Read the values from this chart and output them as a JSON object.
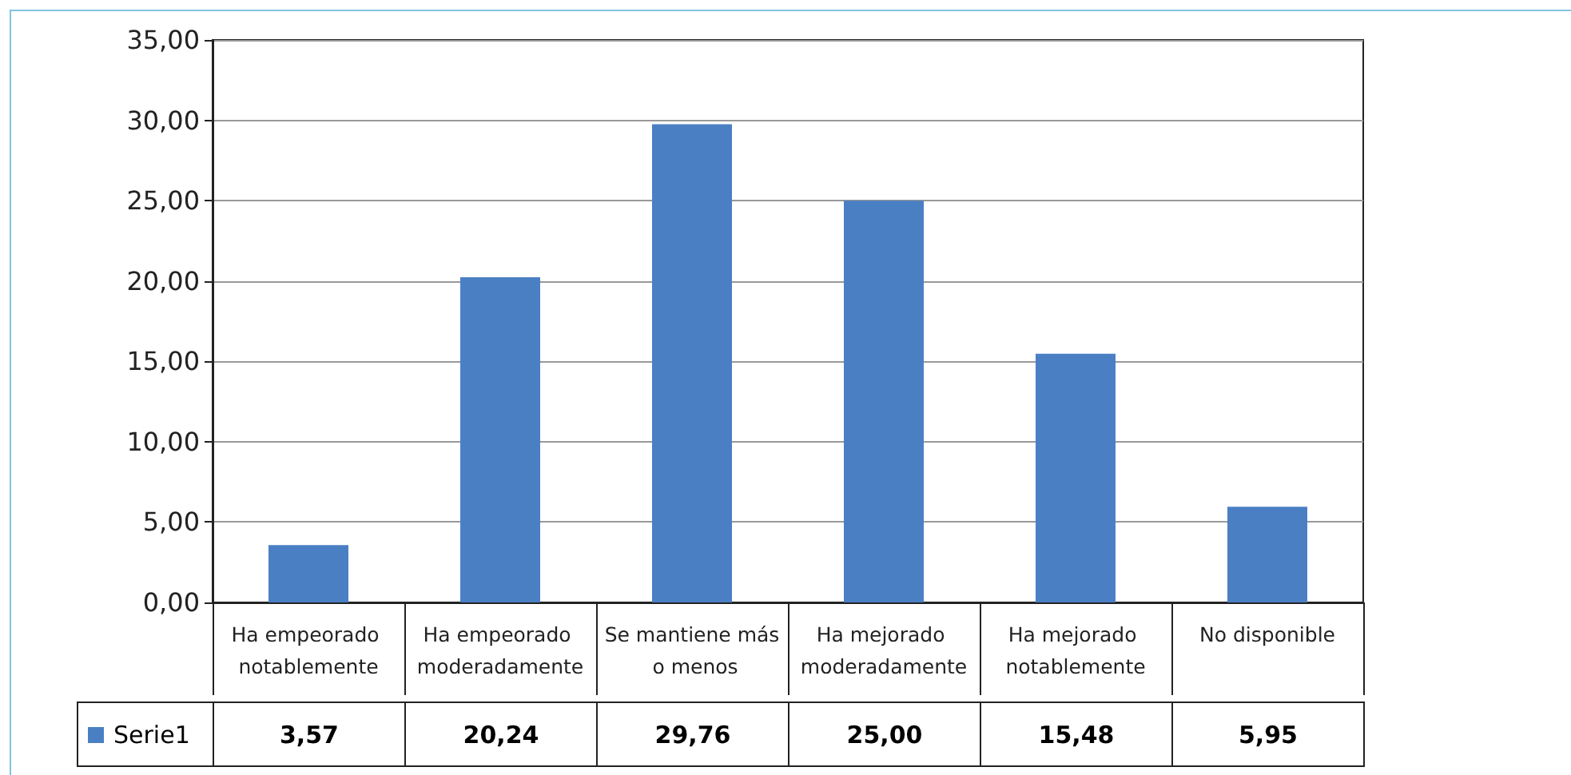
{
  "chart_data": {
    "type": "bar",
    "categories": [
      "Ha empeorado notablemente",
      "Ha empeorado moderadamente",
      "Se mantiene más o menos",
      "Ha mejorado moderadamente",
      "Ha mejorado notablemente",
      "No disponible"
    ],
    "series": [
      {
        "name": "Serie1",
        "color": "#4a7fc4",
        "values": [
          3.57,
          20.24,
          29.76,
          25.0,
          15.48,
          5.95
        ],
        "value_labels": [
          "3,57",
          "20,24",
          "29,76",
          "25,00",
          "15,48",
          "5,95"
        ]
      }
    ],
    "ylim": [
      0,
      35
    ],
    "yticks": [
      {
        "value": 0,
        "label": "0,00"
      },
      {
        "value": 5,
        "label": "5,00"
      },
      {
        "value": 10,
        "label": "10,00"
      },
      {
        "value": 15,
        "label": "15,00"
      },
      {
        "value": 20,
        "label": "20,00"
      },
      {
        "value": 25,
        "label": "25,00"
      },
      {
        "value": 30,
        "label": "30,00"
      },
      {
        "value": 35,
        "label": "35,00"
      }
    ],
    "grid": "y",
    "legend": "bottom"
  }
}
